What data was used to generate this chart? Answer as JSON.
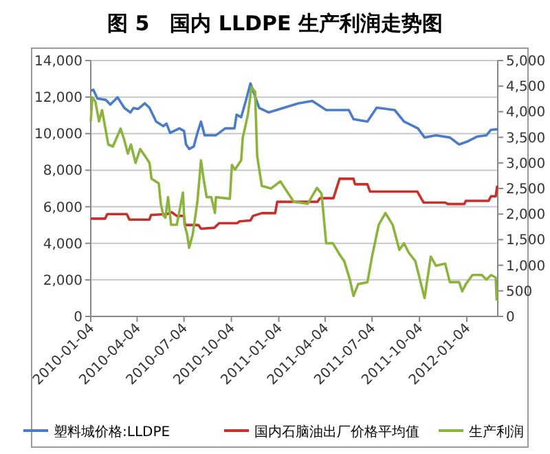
{
  "chart_data": {
    "type": "line",
    "title": "图 5　国内 LLDPE 生产利润走势图",
    "xlim": [
      "2010-01-04",
      "2012-03-04"
    ],
    "xticks": [
      "2010-01-04",
      "2010-04-04",
      "2010-07-04",
      "2010-10-04",
      "2011-01-04",
      "2011-04-04",
      "2011-07-04",
      "2011-10-04",
      "2012-01-04"
    ],
    "ylim": [
      0,
      14000
    ],
    "yticks": [
      0,
      {
        "value": 2000,
        "label": "2,000"
      },
      {
        "value": 4000,
        "label": "4,000"
      },
      {
        "value": 6000,
        "label": "6,000"
      },
      {
        "value": 8000,
        "label": "8,000"
      },
      {
        "value": 10000,
        "label": "10,000"
      },
      {
        "value": 12000,
        "label": "12,000"
      },
      {
        "value": 14000,
        "label": "14,000"
      }
    ],
    "y2lim": [
      0,
      5000
    ],
    "y2ticks": [
      0,
      500,
      {
        "value": 1000,
        "label": "1,000"
      },
      {
        "value": 1500,
        "label": "1,500"
      },
      {
        "value": 2000,
        "label": "2,000"
      },
      {
        "value": 2500,
        "label": "2,500"
      },
      {
        "value": 3000,
        "label": "3,000"
      },
      {
        "value": 3500,
        "label": "3,500"
      },
      {
        "value": 4000,
        "label": "4,000"
      },
      {
        "value": 4500,
        "label": "4,500"
      },
      {
        "value": 5000,
        "label": "5,000"
      }
    ],
    "grid": "y",
    "legend": "bottom",
    "series": [
      {
        "name": "塑料城价格:LLDPE",
        "color": "#4a7cc7",
        "x": [
          "2010-01-04",
          "2010-01-09",
          "2010-01-17",
          "2010-02-02",
          "2010-02-11",
          "2010-02-25",
          "2010-03-10",
          "2010-03-22",
          "2010-03-28",
          "2010-04-06",
          "2010-04-19",
          "2010-04-28",
          "2010-05-11",
          "2010-05-25",
          "2010-05-31",
          "2010-06-07",
          "2010-06-25",
          "2010-07-04",
          "2010-07-08",
          "2010-07-14",
          "2010-07-23",
          "2010-07-30",
          "2010-08-06",
          "2010-08-13",
          "2010-09-04",
          "2010-09-22",
          "2010-10-10",
          "2010-10-14",
          "2010-10-23",
          "2010-11-01",
          "2010-11-10",
          "2010-11-19",
          "2010-11-27",
          "2010-12-15",
          "2011-02-11",
          "2011-03-10",
          "2011-04-06",
          "2011-05-20",
          "2011-05-29",
          "2011-06-25",
          "2011-07-13",
          "2011-08-17",
          "2011-09-04",
          "2011-10-01",
          "2011-10-14",
          "2011-11-05",
          "2011-12-02",
          "2011-12-20",
          "2012-01-06",
          "2012-01-24",
          "2012-02-11",
          "2012-02-20",
          "2012-03-04"
        ],
        "values": [
          12340,
          12400,
          11920,
          11850,
          11590,
          11990,
          11410,
          11160,
          11400,
          11350,
          11660,
          11410,
          10660,
          10410,
          10550,
          10040,
          10290,
          10150,
          9410,
          9160,
          9300,
          10040,
          10660,
          9910,
          9910,
          10290,
          10290,
          11040,
          10900,
          11790,
          12750,
          12040,
          11410,
          11160,
          11660,
          11790,
          11290,
          11290,
          10790,
          10660,
          11420,
          11290,
          10660,
          10290,
          9790,
          9910,
          9790,
          9410,
          9580,
          9840,
          9910,
          10210,
          10240
        ]
      },
      {
        "name": "国内石脑油出厂价格平均值",
        "color": "#c9302c",
        "x": [
          "2010-01-04",
          "2010-02-01",
          "2010-02-05",
          "2010-03-15",
          "2010-03-20",
          "2010-04-28",
          "2010-05-01",
          "2010-06-01",
          "2010-06-10",
          "2010-06-20",
          "2010-07-04",
          "2010-07-06",
          "2010-08-01",
          "2010-08-06",
          "2010-09-01",
          "2010-09-10",
          "2010-10-15",
          "2010-10-20",
          "2010-11-10",
          "2010-11-15",
          "2010-12-02",
          "2010-12-28",
          "2011-01-01",
          "2011-03-20",
          "2011-03-25",
          "2011-04-20",
          "2011-05-02",
          "2011-05-29",
          "2011-06-01",
          "2011-06-25",
          "2011-06-30",
          "2011-09-30",
          "2011-10-12",
          "2011-11-23",
          "2011-11-28",
          "2011-12-30",
          "2012-01-02",
          "2012-02-15",
          "2012-02-20",
          "2012-02-29",
          "2012-03-03"
        ],
        "values": [
          5350,
          5350,
          5600,
          5600,
          5300,
          5300,
          5550,
          5600,
          5700,
          5500,
          5500,
          5000,
          5000,
          4800,
          4850,
          5100,
          5100,
          5200,
          5250,
          5500,
          5650,
          5650,
          6270,
          6270,
          6470,
          6470,
          7530,
          7530,
          7230,
          7230,
          6830,
          6830,
          6230,
          6230,
          6150,
          6150,
          6320,
          6320,
          6570,
          6570,
          7150
        ]
      },
      {
        "name": "生产利润",
        "color": "#8cb33c",
        "axis": "y2",
        "x": [
          "2010-01-04",
          "2010-01-07",
          "2010-01-13",
          "2010-01-20",
          "2010-01-26",
          "2010-02-07",
          "2010-02-16",
          "2010-03-03",
          "2010-03-10",
          "2010-03-17",
          "2010-03-23",
          "2010-04-01",
          "2010-04-10",
          "2010-04-19",
          "2010-04-28",
          "2010-05-02",
          "2010-05-16",
          "2010-05-20",
          "2010-05-25",
          "2010-05-29",
          "2010-06-03",
          "2010-06-09",
          "2010-06-20",
          "2010-07-02",
          "2010-07-05",
          "2010-07-10",
          "2010-07-14",
          "2010-07-21",
          "2010-07-30",
          "2010-08-06",
          "2010-08-11",
          "2010-08-17",
          "2010-08-26",
          "2010-09-02",
          "2010-09-04",
          "2010-10-01",
          "2010-10-05",
          "2010-10-11",
          "2010-10-23",
          "2010-10-26",
          "2010-11-05",
          "2010-11-12",
          "2010-11-19",
          "2010-11-23",
          "2010-12-02",
          "2010-12-20",
          "2011-01-07",
          "2011-01-16",
          "2011-02-02",
          "2011-03-01",
          "2011-03-19",
          "2011-03-28",
          "2011-04-06",
          "2011-04-19",
          "2011-05-02",
          "2011-05-11",
          "2011-05-22",
          "2011-05-29",
          "2011-06-07",
          "2011-06-25",
          "2011-07-04",
          "2011-07-17",
          "2011-07-30",
          "2011-08-13",
          "2011-08-26",
          "2011-09-04",
          "2011-09-13",
          "2011-09-26",
          "2011-10-14",
          "2011-10-26",
          "2011-11-05",
          "2011-11-23",
          "2011-12-02",
          "2011-12-20",
          "2011-12-26",
          "2012-01-02",
          "2012-01-15",
          "2012-02-02",
          "2012-02-11",
          "2012-02-20",
          "2012-02-29",
          "2012-03-02"
        ],
        "values": [
          3810,
          4280,
          4200,
          3810,
          4030,
          3360,
          3320,
          3670,
          3450,
          3180,
          3360,
          3000,
          3270,
          3140,
          3000,
          2690,
          2600,
          2200,
          1970,
          1930,
          2330,
          1790,
          1790,
          2420,
          1790,
          1610,
          1340,
          1610,
          2240,
          3050,
          2690,
          2330,
          2330,
          2020,
          2330,
          2300,
          2960,
          2870,
          3050,
          3490,
          3940,
          4480,
          4390,
          3140,
          2550,
          2500,
          2640,
          2500,
          2240,
          2200,
          2510,
          2400,
          1430,
          1430,
          1210,
          1080,
          720,
          400,
          630,
          670,
          1170,
          1790,
          2020,
          1790,
          1300,
          1430,
          1250,
          1080,
          360,
          1170,
          990,
          1030,
          670,
          670,
          490,
          630,
          810,
          810,
          720,
          810,
          760,
          310
        ]
      }
    ]
  }
}
